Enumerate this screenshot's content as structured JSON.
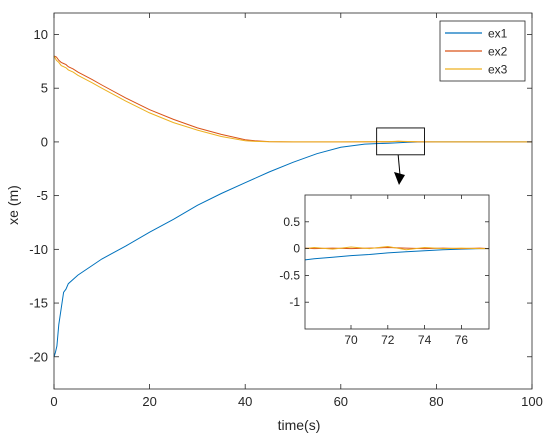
{
  "chart_data": {
    "type": "line",
    "xlabel": "time(s)",
    "ylabel": "xe (m)",
    "xlim": [
      0,
      100
    ],
    "ylim": [
      -23,
      12
    ],
    "xticks": [
      0,
      20,
      40,
      60,
      80,
      100
    ],
    "yticks": [
      -20,
      -15,
      -10,
      -5,
      0,
      5,
      10
    ],
    "grid": false,
    "legend_position": "top-right",
    "series": [
      {
        "name": "ex1",
        "color": "#0072BD",
        "x": [
          0,
          0.3,
          0.6,
          1,
          1.5,
          2,
          2.5,
          3,
          5,
          8,
          10,
          15,
          20,
          25,
          30,
          35,
          40,
          45,
          50,
          55,
          60,
          65,
          68,
          70,
          72,
          74,
          76,
          80,
          90,
          100
        ],
        "y": [
          -20,
          -19.6,
          -19,
          -17,
          -15.5,
          -14,
          -13.7,
          -13.2,
          -12.4,
          -11.5,
          -10.9,
          -9.7,
          -8.4,
          -7.2,
          -5.9,
          -4.8,
          -3.8,
          -2.8,
          -1.9,
          -1.1,
          -0.5,
          -0.2,
          -0.15,
          -0.12,
          -0.08,
          -0.04,
          -0.01,
          0,
          0,
          0
        ]
      },
      {
        "name": "ex2",
        "color": "#D95319",
        "x": [
          0,
          0.5,
          1,
          1.5,
          2,
          2.5,
          3,
          4,
          5,
          8,
          10,
          15,
          20,
          25,
          30,
          35,
          40,
          42,
          45,
          50,
          60,
          70,
          72,
          74,
          76,
          80,
          90,
          100
        ],
        "y": [
          8,
          7.9,
          7.6,
          7.4,
          7.3,
          7.2,
          7.0,
          6.8,
          6.5,
          5.8,
          5.3,
          4.1,
          3.0,
          2.1,
          1.3,
          0.7,
          0.2,
          0.1,
          0.03,
          0,
          0,
          0.02,
          0.05,
          0.03,
          0.01,
          0,
          0,
          0
        ]
      },
      {
        "name": "ex3",
        "color": "#EDB120",
        "x": [
          0,
          0.5,
          1,
          1.5,
          2,
          2.5,
          3,
          4,
          5,
          8,
          10,
          15,
          20,
          25,
          30,
          35,
          40,
          42,
          45,
          50,
          60,
          70,
          72,
          74,
          76,
          80,
          90,
          100
        ],
        "y": [
          8,
          7.6,
          7.4,
          7.1,
          7.0,
          6.9,
          6.7,
          6.5,
          6.2,
          5.5,
          5.0,
          3.8,
          2.7,
          1.8,
          1.1,
          0.5,
          0.1,
          0.05,
          0.02,
          0,
          0,
          0.03,
          0.06,
          0.04,
          0.01,
          0,
          0,
          0
        ]
      }
    ],
    "inset": {
      "xlim": [
        67.5,
        77.5
      ],
      "ylim": [
        -1.5,
        1
      ],
      "xticks": [
        70,
        72,
        74,
        76
      ],
      "yticks": [
        -1,
        -0.5,
        0,
        0.5
      ],
      "series": [
        {
          "name": "ex1",
          "x": [
            67.5,
            68,
            69,
            70,
            71,
            72,
            73,
            74,
            75,
            76,
            77,
            77.5
          ],
          "y": [
            -0.21,
            -0.19,
            -0.16,
            -0.13,
            -0.11,
            -0.08,
            -0.06,
            -0.04,
            -0.02,
            -0.01,
            0,
            0
          ]
        },
        {
          "name": "ex2",
          "x": [
            67.5,
            68,
            69,
            70,
            71,
            72,
            73,
            74,
            75,
            76,
            77,
            77.5
          ],
          "y": [
            0.01,
            0.0,
            0.01,
            0.0,
            0.01,
            0.02,
            0.01,
            0.0,
            0.01,
            0.0,
            0.01,
            0.0
          ]
        },
        {
          "name": "ex3",
          "x": [
            67.5,
            68,
            69,
            70,
            71,
            72,
            73,
            74,
            75,
            76,
            77,
            77.5
          ],
          "y": [
            0.0,
            0.02,
            -0.01,
            0.03,
            0.0,
            0.04,
            -0.02,
            0.02,
            0.0,
            0.01,
            0.0,
            0.0
          ]
        }
      ]
    },
    "zoom_box": {
      "xlim": [
        67.5,
        77.5
      ],
      "ylim": [
        -1.2,
        1.3
      ]
    }
  }
}
